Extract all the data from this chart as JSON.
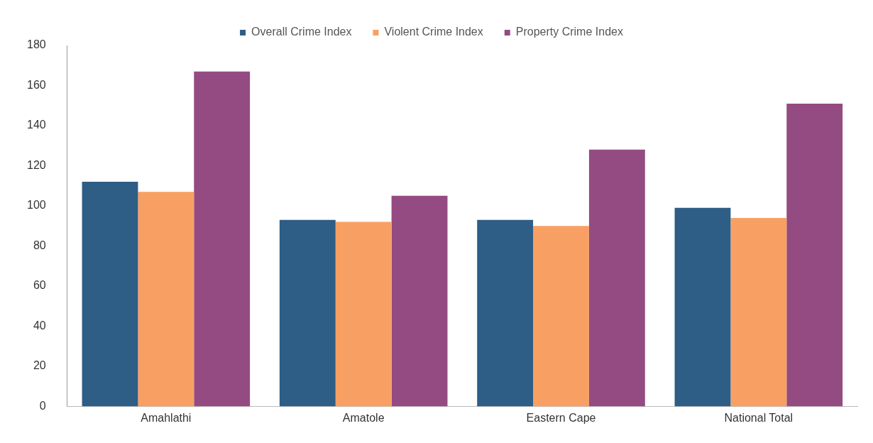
{
  "chart_data": {
    "type": "bar",
    "categories": [
      "Amahlathi",
      "Amatole",
      "Eastern Cape",
      "National Total"
    ],
    "series": [
      {
        "name": "Overall Crime Index",
        "color": "#2e5d85",
        "values": [
          112,
          93,
          93,
          99
        ]
      },
      {
        "name": "Violent Crime Index",
        "color": "#f8a063",
        "values": [
          107,
          92,
          90,
          94
        ]
      },
      {
        "name": "Property Crime Index",
        "color": "#944b82",
        "values": [
          167,
          105,
          128,
          151
        ]
      }
    ],
    "ylim": [
      0,
      180
    ],
    "yticks": [
      0,
      20,
      40,
      60,
      80,
      100,
      120,
      140,
      160,
      180
    ],
    "grid": false,
    "legend": "top"
  }
}
